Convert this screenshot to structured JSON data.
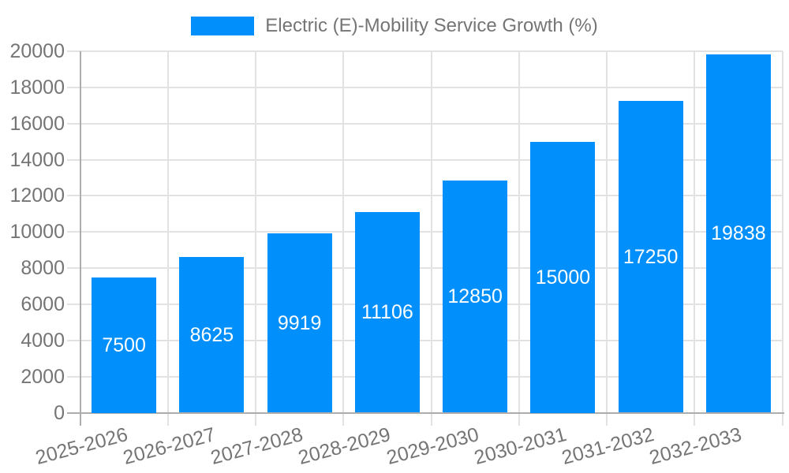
{
  "chart_data": {
    "type": "bar",
    "series_name": "Electric (E)-Mobility Service Growth (%)",
    "categories": [
      "2025-2026",
      "2026-2027",
      "2027-2028",
      "2028-2029",
      "2029-2030",
      "2030-2031",
      "2031-2032",
      "2032-2033"
    ],
    "values": [
      7500,
      8625,
      9919,
      11106,
      12850,
      15000,
      17250,
      19838
    ],
    "bar_labels": [
      "7500",
      "8625",
      "9919",
      "11106",
      "12850",
      "15000",
      "17250",
      "19838"
    ],
    "yticks": [
      0,
      2000,
      4000,
      6000,
      8000,
      10000,
      12000,
      14000,
      16000,
      18000,
      20000
    ],
    "ylim": [
      0,
      20000
    ],
    "grid": true,
    "legend_position": "top",
    "xlabel_rotation_deg": -15,
    "colors": {
      "bar": "#008FFB",
      "bar_label_text": "#FFFFFF",
      "axis_text": "#757575",
      "legend_text": "#757575",
      "gridline": "#E2E2E2",
      "axis_line": "#ADADAD",
      "background": "#FFFFFF"
    }
  }
}
